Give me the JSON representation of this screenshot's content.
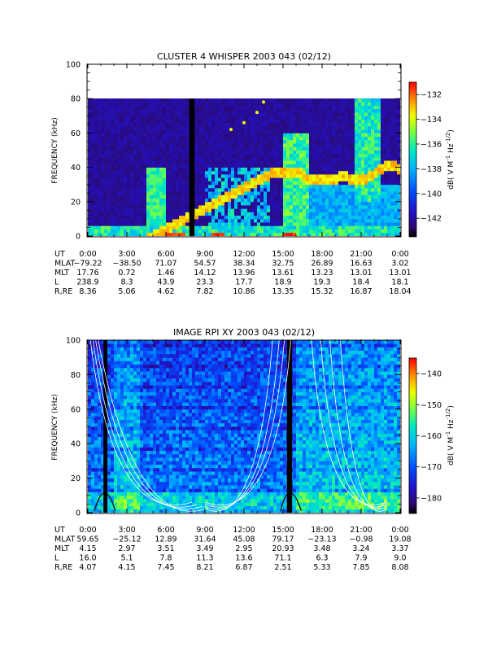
{
  "chart_data": [
    {
      "type": "heatmap",
      "title": "CLUSTER 4 WHISPER 2003 043 (02/12)",
      "ylabel": "FREQUENCY (kHz)",
      "ylim": [
        0,
        100
      ],
      "yticks": [
        "0",
        "20",
        "40",
        "60",
        "80",
        "100"
      ],
      "colorbar": {
        "label": "dB( V M⁻¹ Hz⁻¹ᐟ²)",
        "label_parts": [
          "dB( V M",
          "-1",
          " Hz",
          "-1/2",
          ")"
        ],
        "range": [
          -143.5,
          -131
        ],
        "ticks": [
          -132,
          -134,
          -136,
          -138,
          -140,
          -142
        ],
        "tick_labels": [
          "−132",
          "−134",
          "−136",
          "−138",
          "−140",
          "−142"
        ]
      },
      "data_upper_freq_khz": 80,
      "features": {
        "plasma_line_khz": [
          [
            13.5,
            34
          ],
          [
            14,
            36
          ],
          [
            14.5,
            37
          ],
          [
            15,
            36
          ],
          [
            16,
            38
          ],
          [
            17,
            33
          ],
          [
            18,
            34
          ],
          [
            19,
            33
          ],
          [
            19.5,
            35
          ],
          [
            20,
            34
          ],
          [
            20.5,
            33
          ],
          [
            21.5,
            34
          ],
          [
            22,
            36
          ],
          [
            22.5,
            39
          ],
          [
            23,
            42
          ],
          [
            23.5,
            41
          ],
          [
            24,
            38
          ]
        ],
        "data_gap_hours": [
          7.8,
          8.2
        ],
        "upper_arc_khz": [
          [
            11,
            62
          ],
          [
            12,
            66
          ],
          [
            13,
            72
          ],
          [
            13.5,
            78
          ]
        ]
      },
      "ephemeris": {
        "row_labels": [
          "UT",
          "MLAT",
          "MLT",
          "L",
          "R,RE"
        ],
        "UT": [
          "0:00",
          "3:00",
          "6:00",
          "9:00",
          "12:00",
          "15:00",
          "18:00",
          "21:00",
          "0:00"
        ],
        "MLAT": [
          "−79.22",
          "−38.50",
          "71.07",
          "54.57",
          "38.34",
          "32.75",
          "26.89",
          "16.63",
          "3.02"
        ],
        "MLT": [
          "17.76",
          "0.72",
          "1.46",
          "14.12",
          "13.96",
          "13.61",
          "13.23",
          "13.01",
          "13.01"
        ],
        "L": [
          "238.9",
          "8.3",
          "43.9",
          "23.3",
          "17.7",
          "18.9",
          "19.3",
          "18.4",
          "18.1"
        ],
        "R,RE": [
          "8.36",
          "5.06",
          "4.62",
          "7.82",
          "10.86",
          "13.35",
          "15.32",
          "16.87",
          "18.04"
        ]
      }
    },
    {
      "type": "heatmap",
      "title": "IMAGE RPI XY 2003 043 (02/12)",
      "ylabel": "FREQUENCY (kHz)",
      "ylim": [
        0,
        100
      ],
      "yticks": [
        "0",
        "20",
        "40",
        "60",
        "80",
        "100"
      ],
      "colorbar": {
        "label_parts": [
          "dB( V M",
          "-1",
          " Hz",
          "-1/2",
          ")"
        ],
        "range": [
          -185,
          -135
        ],
        "ticks": [
          -140,
          -150,
          -160,
          -170,
          -180
        ],
        "tick_labels": [
          "−140",
          "−150",
          "−160",
          "−170",
          "−180"
        ]
      },
      "features": {
        "data_gap_hours": [
          [
            1.2,
            1.5
          ],
          [
            15.3,
            15.7
          ]
        ]
      },
      "ephemeris": {
        "row_labels": [
          "UT",
          "MLAT",
          "MLT",
          "L",
          "R,RE"
        ],
        "UT": [
          "0:00",
          "3:00",
          "6:00",
          "9:00",
          "12:00",
          "15:00",
          "18:00",
          "21:00",
          "0:00"
        ],
        "MLAT": [
          "59.65",
          "−25.12",
          "12.89",
          "31.64",
          "45.08",
          "79.17",
          "−23.13",
          "−0.98",
          "19.08"
        ],
        "MLT": [
          "4.15",
          "2.97",
          "3.51",
          "3.49",
          "2.95",
          "20.93",
          "3.48",
          "3.24",
          "3.37"
        ],
        "L": [
          "16.0",
          "5.1",
          "7.8",
          "11.3",
          "13.6",
          "71.1",
          "6.3",
          "7.9",
          "9.0"
        ],
        "R,RE": [
          "4.07",
          "4.15",
          "7.45",
          "8.21",
          "6.87",
          "2.51",
          "5.33",
          "7.85",
          "8.08"
        ]
      }
    }
  ]
}
